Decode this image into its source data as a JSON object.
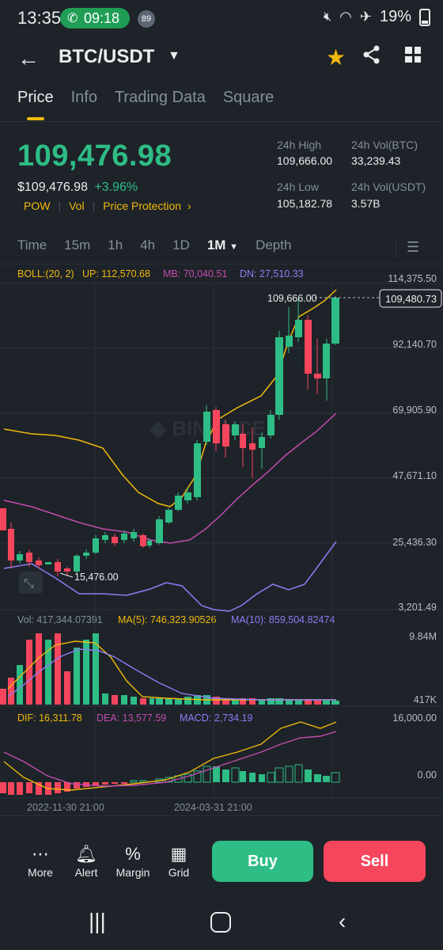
{
  "status": {
    "time": "13:35",
    "call": "09:18",
    "badge": "89",
    "battery": "19%"
  },
  "header": {
    "pair": "BTC/USDT"
  },
  "tabs": [
    "Price",
    "Info",
    "Trading Data",
    "Square"
  ],
  "price": {
    "last": "109,476.98",
    "usd": "$109,476.98",
    "change": "+3.96%",
    "tags": [
      "POW",
      "Vol",
      "Price Protection"
    ],
    "stats": {
      "high_label": "24h High",
      "high": "109,666.00",
      "low_label": "24h Low",
      "low": "105,182.78",
      "volb_label": "24h Vol(BTC)",
      "volb": "33,239.43",
      "volu_label": "24h Vol(USDT)",
      "volu": "3.57B"
    }
  },
  "intervals": [
    "Time",
    "15m",
    "1h",
    "4h",
    "1D",
    "1M",
    "Depth"
  ],
  "indicators": {
    "boll": {
      "label": "BOLL:(20, 2)",
      "up": "UP: 112,570.68",
      "mb": "MB: 70,040.51",
      "dn": "DN: 27,510.33"
    },
    "vol": {
      "label": "Vol: 417,344.07391",
      "ma5": "MA(5): 746,323.90526",
      "ma10": "MA(10): 859,504.82474"
    },
    "macd": {
      "dif": "DIF: 16,311.78",
      "dea": "DEA: 13,577.59",
      "macd": "MACD: 2,734.19"
    }
  },
  "axis": {
    "price_ticks": [
      "114,375.50",
      "92,140.70",
      "69,905.90",
      "47,671.10",
      "25,436.30",
      "3,201.49"
    ],
    "vol_ticks": [
      "9.84M",
      "417K"
    ],
    "macd_ticks": [
      "16,000.00",
      "0.00"
    ],
    "dates": [
      "2022-11-30 21:00",
      "2024-03-31 21:00"
    ],
    "high_marker": "109,666.00",
    "low_marker": "15,476.00",
    "current_marker": "109,480.73"
  },
  "bottom": {
    "more": "More",
    "alert": "Alert",
    "margin": "Margin",
    "grid": "Grid",
    "buy": "Buy",
    "sell": "Sell"
  },
  "colors": {
    "up": "#2EBD85",
    "down": "#F6465D",
    "accent": "#F0B90B",
    "bg": "#1E2329"
  }
}
